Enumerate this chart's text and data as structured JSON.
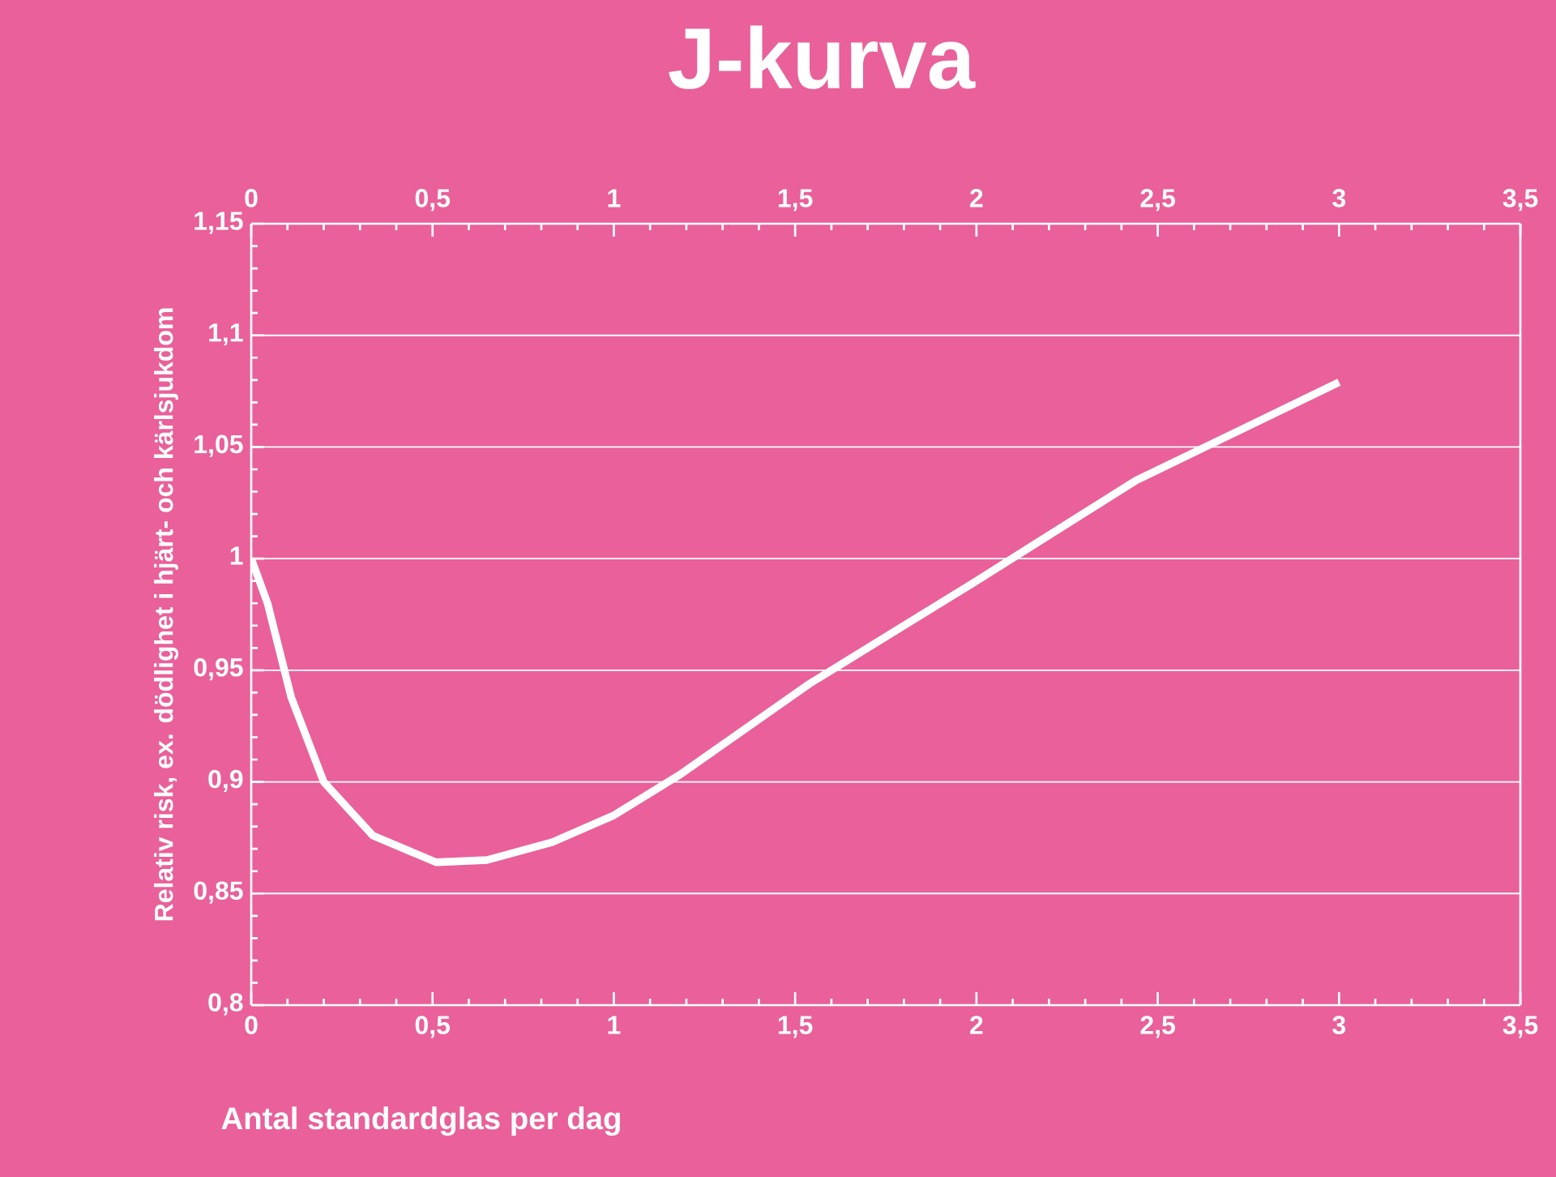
{
  "chart_data": {
    "type": "line",
    "title": "J-kurva",
    "xlabel": "Antal standardglas per dag",
    "ylabel": "Relativ risk, ex. dödlighet i hjärt- och kärlsjukdom",
    "series": [
      {
        "color": "#ffffff",
        "x": [
          0,
          0.045,
          0.11,
          0.2,
          0.335,
          0.51,
          0.65,
          0.83,
          1.0,
          1.18,
          1.54,
          1.99,
          2.44,
          3.0
        ],
        "values": [
          1.0,
          0.98,
          0.938,
          0.9,
          0.876,
          0.864,
          0.865,
          0.873,
          0.885,
          0.903,
          0.944,
          0.989,
          1.035,
          1.079
        ]
      }
    ],
    "xlim": [
      0,
      3.5
    ],
    "xticks": [
      0,
      {
        "value": 0.5,
        "label": "0,5"
      },
      1,
      {
        "value": 1.5,
        "label": "1,5"
      },
      2,
      {
        "value": 2.5,
        "label": "2,5"
      },
      3,
      {
        "value": 3.5,
        "label": "3,5"
      }
    ],
    "x2lim": [
      0,
      3.5
    ],
    "x2ticks": [
      0,
      {
        "value": 0.5,
        "label": "0,5"
      },
      1,
      {
        "value": 1.5,
        "label": "1,5"
      },
      2,
      {
        "value": 2.5,
        "label": "2,5"
      },
      3,
      {
        "value": 3.5,
        "label": "3,5"
      }
    ],
    "ylim": [
      0.8,
      1.15
    ],
    "yticks": [
      {
        "value": 0.8,
        "label": "0,8"
      },
      {
        "value": 0.85,
        "label": "0,85"
      },
      {
        "value": 0.9,
        "label": "0,9"
      },
      {
        "value": 0.95,
        "label": "0,95"
      },
      1,
      {
        "value": 1.05,
        "label": "1,05"
      },
      {
        "value": 1.1,
        "label": "1,1"
      },
      {
        "value": 1.15,
        "label": "1,15"
      }
    ],
    "grid": "y"
  }
}
